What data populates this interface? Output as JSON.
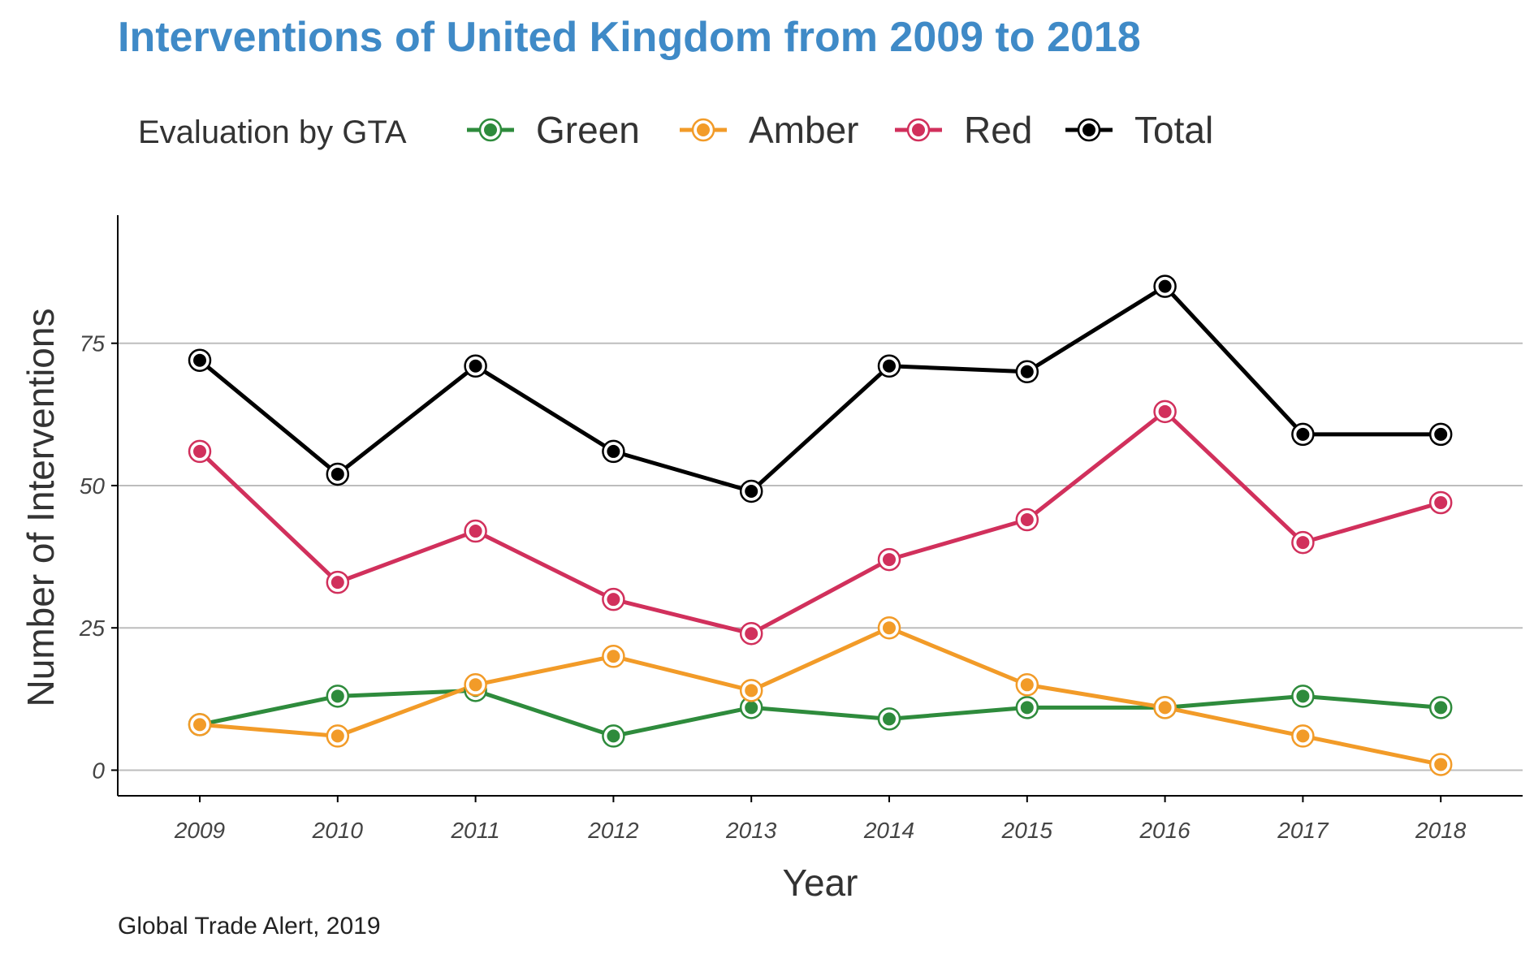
{
  "chart_data": {
    "type": "line",
    "title": "Interventions of United Kingdom from 2009 to 2018",
    "xlabel": "Year",
    "ylabel": "Number of Interventions",
    "caption": "Global Trade Alert, 2019",
    "legend_title": "Evaluation by GTA",
    "legend_position": "top",
    "x": [
      "2009",
      "2010",
      "2011",
      "2012",
      "2013",
      "2014",
      "2015",
      "2016",
      "2017",
      "2018"
    ],
    "y_ticks": [
      0,
      25,
      50,
      75
    ],
    "ylim": [
      -4.5,
      97.5
    ],
    "grid": "horizontal",
    "series": [
      {
        "name": "Green",
        "color": "#2e8b3c",
        "values": [
          8,
          13,
          14,
          6,
          11,
          9,
          11,
          11,
          13,
          11
        ]
      },
      {
        "name": "Amber",
        "color": "#f29b28",
        "values": [
          8,
          6,
          15,
          20,
          14,
          25,
          15,
          11,
          6,
          1
        ]
      },
      {
        "name": "Red",
        "color": "#d1305c",
        "values": [
          56,
          33,
          42,
          30,
          24,
          37,
          44,
          63,
          40,
          47
        ]
      },
      {
        "name": "Total",
        "color": "#000000",
        "values": [
          72,
          52,
          71,
          56,
          49,
          71,
          70,
          85,
          59,
          59
        ]
      }
    ]
  },
  "colors": {
    "title": "#3f8ac7",
    "grid": "#bdbdbd",
    "axis": "#000000"
  }
}
